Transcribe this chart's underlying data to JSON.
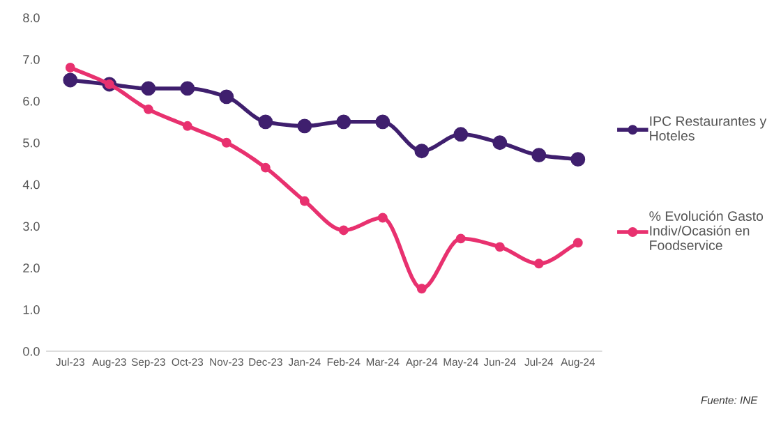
{
  "chart_data": {
    "type": "line",
    "categories": [
      "Jul-23",
      "Aug-23",
      "Sep-23",
      "Oct-23",
      "Nov-23",
      "Dec-23",
      "Jan-24",
      "Feb-24",
      "Mar-24",
      "Apr-24",
      "May-24",
      "Jun-24",
      "Jul-24",
      "Aug-24"
    ],
    "series": [
      {
        "name": "IPC Restaurantes y Hoteles",
        "color": "#3f1f6e",
        "values": [
          6.5,
          6.4,
          6.3,
          6.3,
          6.1,
          5.5,
          5.4,
          5.5,
          5.5,
          4.8,
          5.2,
          5.0,
          4.7,
          4.6
        ]
      },
      {
        "name": "% Evolución Gasto Indiv/Ocasión en Foodservice",
        "color": "#e8316f",
        "values": [
          6.8,
          6.4,
          5.8,
          5.4,
          5.0,
          4.4,
          3.6,
          2.9,
          3.2,
          1.5,
          2.7,
          2.5,
          2.1,
          2.6
        ]
      }
    ],
    "ylim": [
      0,
      8
    ],
    "yticks": [
      {
        "value": 0,
        "label": "0.0"
      },
      {
        "value": 1,
        "label": "1.0"
      },
      {
        "value": 2,
        "label": "2.0"
      },
      {
        "value": 3,
        "label": "3.0"
      },
      {
        "value": 4,
        "label": "4.0"
      },
      {
        "value": 5,
        "label": "5.0"
      },
      {
        "value": 6,
        "label": "6.0"
      },
      {
        "value": 7,
        "label": "7.0"
      },
      {
        "value": 8,
        "label": "8.0"
      }
    ],
    "grid": false,
    "legend": "right",
    "marker": "circle",
    "line_style": "solid",
    "annotations": [
      "Fuente: INE"
    ]
  }
}
